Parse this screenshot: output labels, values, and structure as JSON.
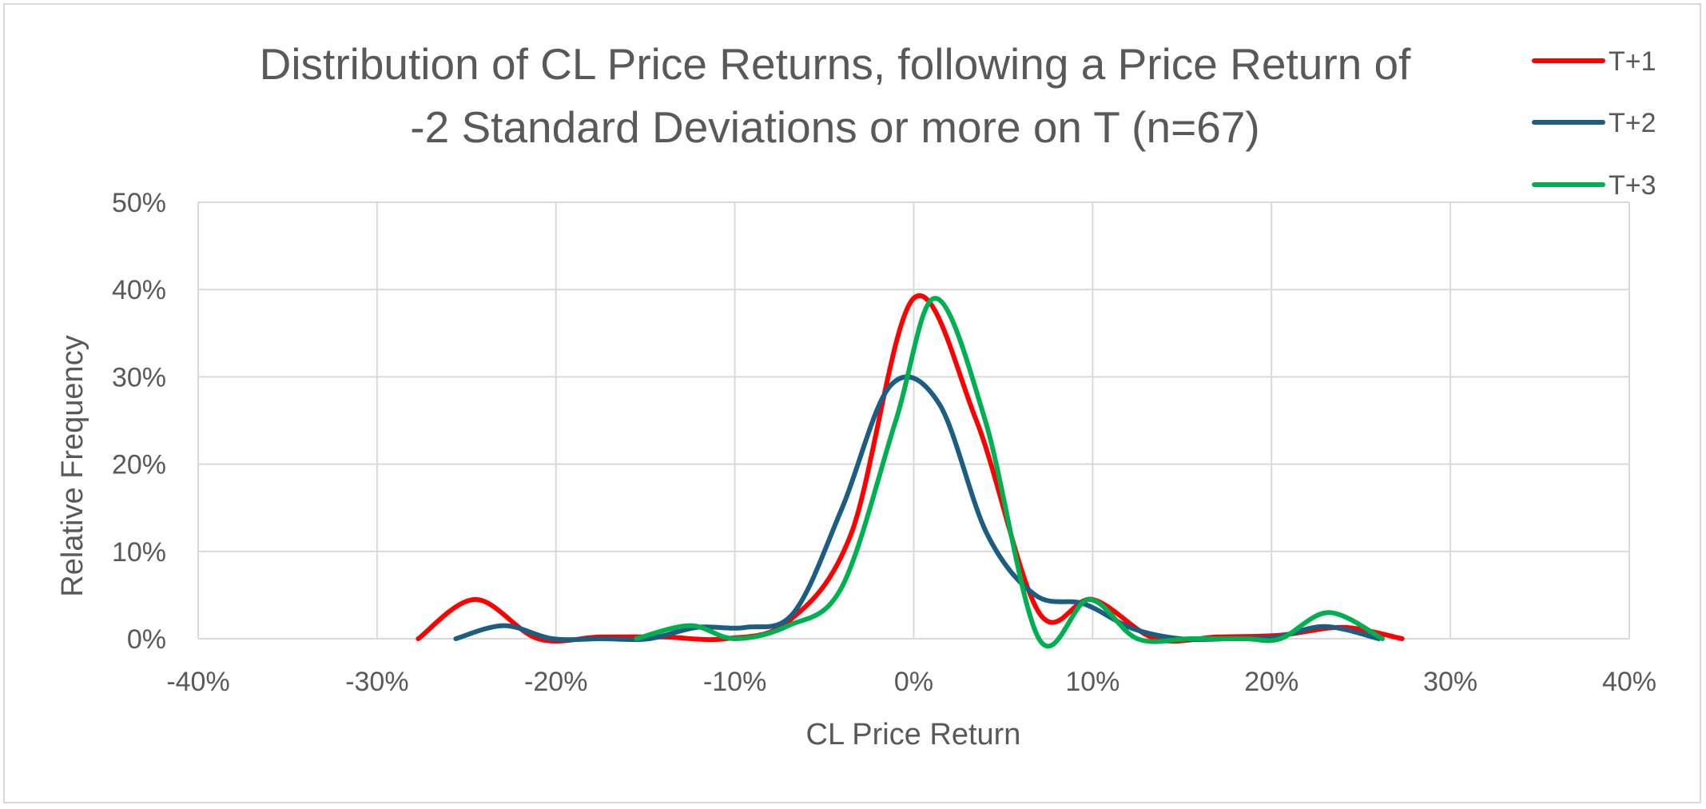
{
  "chart_data": {
    "type": "line",
    "title": "Distribution of CL Price Returns, following a Price Return of -2 Standard Deviations or more on T (n=67)",
    "title_lines": [
      "Distribution of CL Price Returns, following a Price Return of",
      "-2 Standard Deviations or more on T (n=67)"
    ],
    "xlabel": "CL Price Return",
    "ylabel": "Relative Frequency",
    "xlim": [
      -0.4,
      0.4
    ],
    "ylim": [
      0,
      0.5
    ],
    "x_ticks": [
      -0.4,
      -0.3,
      -0.2,
      -0.1,
      0,
      0.1,
      0.2,
      0.3,
      0.4
    ],
    "x_tick_labels": [
      "-40%",
      "-30%",
      "-20%",
      "-10%",
      "0%",
      "10%",
      "20%",
      "30%",
      "40%"
    ],
    "y_ticks": [
      0,
      0.1,
      0.2,
      0.3,
      0.4,
      0.5
    ],
    "y_tick_labels": [
      "0%",
      "10%",
      "20%",
      "30%",
      "40%",
      "50%"
    ],
    "grid": true,
    "legend_position": "top-right",
    "series": [
      {
        "name": "T+1",
        "color": "#ff0000",
        "x": [
          -0.277,
          -0.245,
          -0.21,
          -0.175,
          -0.14,
          -0.105,
          -0.07,
          -0.035,
          0.0,
          0.035,
          0.07,
          0.1,
          0.135,
          0.17,
          0.205,
          0.24,
          0.273
        ],
        "y": [
          0.0,
          0.045,
          0.0,
          0.002,
          0.002,
          0.0,
          0.02,
          0.12,
          0.39,
          0.25,
          0.03,
          0.045,
          0.0,
          0.002,
          0.004,
          0.013,
          0.0
        ]
      },
      {
        "name": "T+2",
        "color": "#1b5e82",
        "x": [
          -0.256,
          -0.229,
          -0.202,
          -0.175,
          -0.148,
          -0.121,
          -0.094,
          -0.067,
          -0.04,
          -0.013,
          0.014,
          0.041,
          0.068,
          0.095,
          0.122,
          0.149,
          0.176,
          0.203,
          0.23,
          0.26
        ],
        "y": [
          0.0,
          0.015,
          0.0,
          0.0,
          0.0,
          0.013,
          0.013,
          0.03,
          0.15,
          0.29,
          0.27,
          0.12,
          0.05,
          0.04,
          0.012,
          0.0,
          0.0,
          0.002,
          0.014,
          0.0
        ]
      },
      {
        "name": "T+3",
        "color": "#00b050",
        "x": [
          -0.155,
          -0.125,
          -0.1,
          -0.07,
          -0.04,
          -0.01,
          0.012,
          0.04,
          0.07,
          0.098,
          0.125,
          0.155,
          0.185,
          0.205,
          0.232,
          0.262
        ],
        "y": [
          0.0,
          0.015,
          0.0,
          0.015,
          0.06,
          0.25,
          0.39,
          0.25,
          0.0,
          0.045,
          0.0,
          0.0,
          0.0,
          0.0,
          0.03,
          0.0
        ]
      }
    ]
  }
}
